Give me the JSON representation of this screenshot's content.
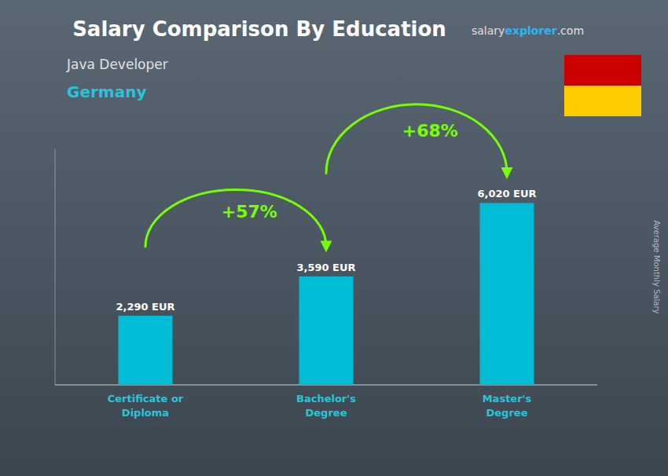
{
  "chart_data": {
    "type": "bar",
    "title": "Salary Comparison By Education",
    "subtitle": "Java Developer",
    "annotations": {
      "country": "Germany",
      "website": [
        "salary",
        "explorer",
        ".com"
      ],
      "changes": [
        "+57%",
        "+68%"
      ]
    },
    "ylabel": "Average Monthly Salary",
    "categories": [
      "Certificate or\nDiploma",
      "Bachelor's\nDegree",
      "Master's\nDegree"
    ],
    "values": [
      2290,
      3590,
      6020
    ],
    "value_labels": [
      "2,290 EUR",
      "3,590 EUR",
      "6,020 EUR"
    ],
    "data_labels": true,
    "color": "#00bcd4",
    "ylim": [
      0,
      7800
    ],
    "tick_labels": false
  }
}
